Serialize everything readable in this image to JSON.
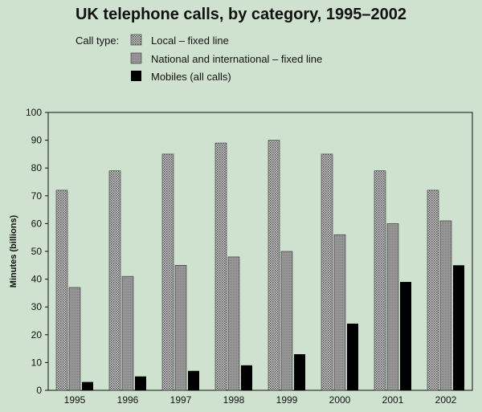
{
  "chart_data": {
    "type": "bar",
    "title": "UK telephone calls, by category, 1995–2002",
    "legend_title": "Call type:",
    "legend_position": "top-left",
    "xlabel": "",
    "ylabel": "Minutes (billions)",
    "ylim": [
      0,
      100
    ],
    "yticks": [
      0,
      10,
      20,
      30,
      40,
      50,
      60,
      70,
      80,
      90,
      100
    ],
    "grid": false,
    "categories": [
      "1995",
      "1996",
      "1997",
      "1998",
      "1999",
      "2000",
      "2001",
      "2002"
    ],
    "series": [
      {
        "name": "Local – fixed line",
        "pattern": "dotted",
        "color": "#9a9a9a",
        "values": [
          72,
          79,
          85,
          89,
          90,
          85,
          79,
          72
        ]
      },
      {
        "name": "National and international – fixed line",
        "pattern": "grey",
        "color": "#8c8c8c",
        "values": [
          37,
          41,
          45,
          48,
          50,
          56,
          60,
          61
        ]
      },
      {
        "name": "Mobiles (all calls)",
        "pattern": "solid",
        "color": "#000000",
        "values": [
          3,
          5,
          7,
          9,
          13,
          24,
          39,
          45
        ]
      }
    ]
  },
  "colors": {
    "background": "#cfe1cf",
    "axis": "#111111"
  }
}
